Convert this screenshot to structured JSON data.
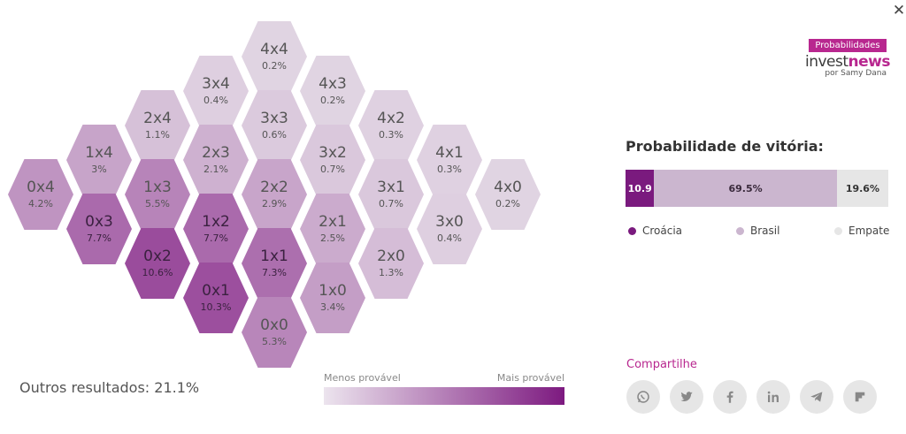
{
  "hexes": [
    {
      "score": "4x4",
      "pct": "0.2%",
      "value": 0.2
    },
    {
      "score": "3x4",
      "pct": "0.4%",
      "value": 0.4
    },
    {
      "score": "4x3",
      "pct": "0.2%",
      "value": 0.2
    },
    {
      "score": "2x4",
      "pct": "1.1%",
      "value": 1.1
    },
    {
      "score": "3x3",
      "pct": "0.6%",
      "value": 0.6
    },
    {
      "score": "4x2",
      "pct": "0.3%",
      "value": 0.3
    },
    {
      "score": "1x4",
      "pct": "3%",
      "value": 3
    },
    {
      "score": "2x3",
      "pct": "2.1%",
      "value": 2.1
    },
    {
      "score": "3x2",
      "pct": "0.7%",
      "value": 0.7
    },
    {
      "score": "4x1",
      "pct": "0.3%",
      "value": 0.3
    },
    {
      "score": "0x4",
      "pct": "4.2%",
      "value": 4.2
    },
    {
      "score": "1x3",
      "pct": "5.5%",
      "value": 5.5
    },
    {
      "score": "2x2",
      "pct": "2.9%",
      "value": 2.9
    },
    {
      "score": "3x1",
      "pct": "0.7%",
      "value": 0.7
    },
    {
      "score": "4x0",
      "pct": "0.2%",
      "value": 0.2
    },
    {
      "score": "0x3",
      "pct": "7.7%",
      "value": 7.7
    },
    {
      "score": "1x2",
      "pct": "7.7%",
      "value": 7.7
    },
    {
      "score": "2x1",
      "pct": "2.5%",
      "value": 2.5
    },
    {
      "score": "3x0",
      "pct": "0.4%",
      "value": 0.4
    },
    {
      "score": "0x2",
      "pct": "10.6%",
      "value": 10.6
    },
    {
      "score": "1x1",
      "pct": "7.3%",
      "value": 7.3
    },
    {
      "score": "2x0",
      "pct": "1.3%",
      "value": 1.3
    },
    {
      "score": "0x1",
      "pct": "10.3%",
      "value": 10.3
    },
    {
      "score": "1x0",
      "pct": "3.4%",
      "value": 3.4
    },
    {
      "score": "0x0",
      "pct": "5.3%",
      "value": 5.3
    }
  ],
  "others_text": "Outros resultados: 21.1%",
  "scale": {
    "less": "Menos provável",
    "more": "Mais provável"
  },
  "logo": {
    "tag": "Probabilidades",
    "brand_a": "invest",
    "brand_b": "news",
    "by": "por Samy Dana"
  },
  "probability": {
    "title": "Probabilidade de vitória:",
    "segments": [
      {
        "name": "Croácia",
        "label": "10.9",
        "value": 10.9,
        "color": "#7a1a7e"
      },
      {
        "name": "Brasil",
        "label": "69.5%",
        "value": 69.5,
        "color": "#cbb6cf"
      },
      {
        "name": "Empate",
        "label": "19.6%",
        "value": 19.6,
        "color": "#e6e6e6"
      }
    ]
  },
  "share": {
    "title": "Compartilhe",
    "icons": [
      "whatsapp-icon",
      "twitter-icon",
      "facebook-icon",
      "linkedin-icon",
      "telegram-icon",
      "flipboard-icon"
    ]
  },
  "colors": {
    "accent": "#b8278f",
    "low": "#e4dbe6",
    "high": "#9a4c9c"
  }
}
